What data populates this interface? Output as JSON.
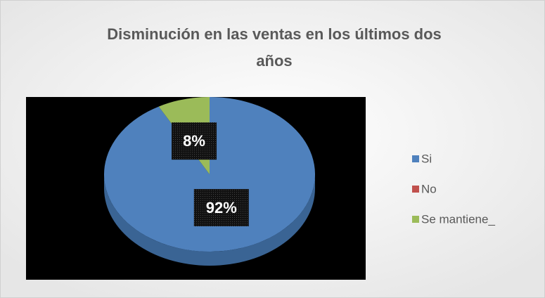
{
  "chart_data": {
    "type": "pie",
    "title": "Disminución en las ventas en los últimos dos años",
    "categories": [
      "Si",
      "No",
      "Se mantiene_"
    ],
    "values": [
      92,
      0,
      8
    ],
    "value_labels": [
      "92%",
      null,
      "8%"
    ],
    "colors": [
      "#4f81bd",
      "#c0504d",
      "#9bbb59"
    ],
    "legend": "right"
  }
}
